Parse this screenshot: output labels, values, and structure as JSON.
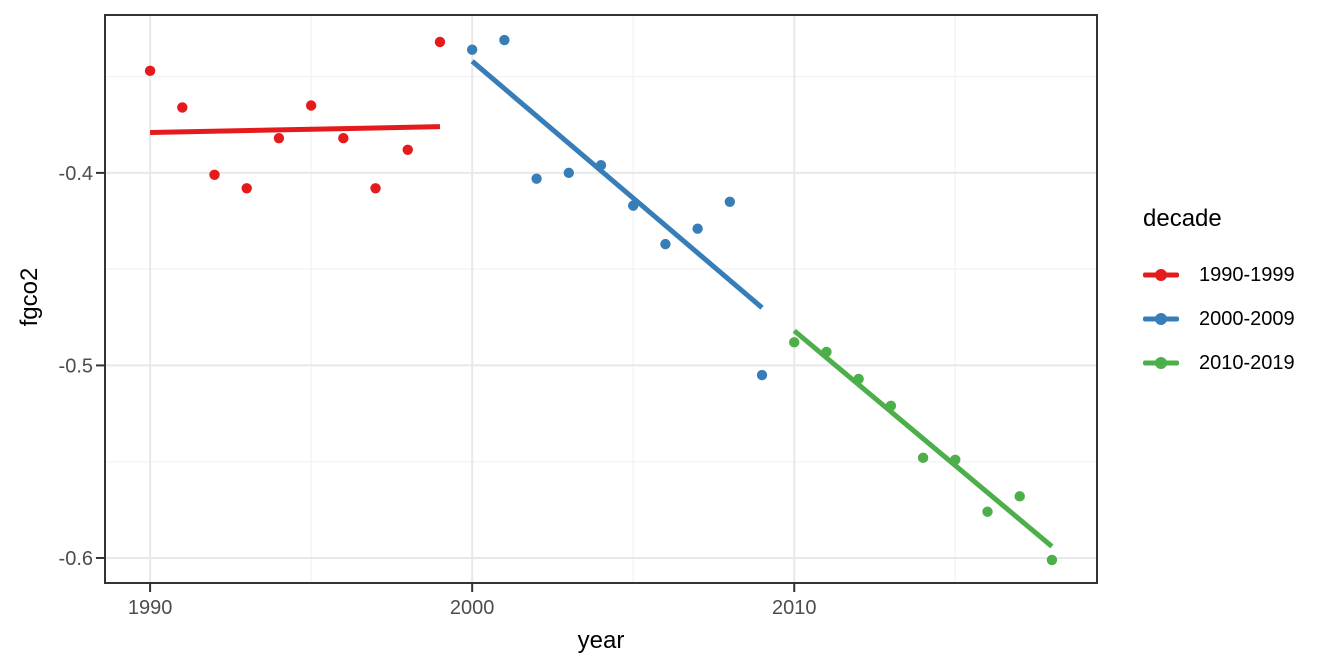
{
  "chart_data": {
    "type": "scatter",
    "title": "",
    "xlabel": "year",
    "ylabel": "fgco2",
    "xlim": [
      1988.6,
      2019.4
    ],
    "ylim": [
      -0.613,
      -0.318
    ],
    "x_ticks": [
      1990,
      2000,
      2010
    ],
    "x_tick_labels": [
      "1990",
      "2000",
      "2010"
    ],
    "x_minor_ticks": [
      1995,
      2005,
      2015
    ],
    "y_ticks": [
      -0.4,
      -0.5,
      -0.6
    ],
    "y_tick_labels": [
      "-0.4",
      "-0.5",
      "-0.6"
    ],
    "y_minor_ticks": [
      -0.35,
      -0.45,
      -0.55
    ],
    "grid": true,
    "legend_position": "right",
    "style": {
      "grid_major": "#E8E8E8",
      "grid_minor": "#F4F4F4",
      "panel_border": "#333333",
      "tick_color": "#333333",
      "tick_label_color": "#4D4D4D",
      "point_radius": 5.2,
      "line_width": 5
    },
    "series": [
      {
        "name": "1990-1999",
        "color": "#E41A1C",
        "x": [
          1990,
          1991,
          1992,
          1993,
          1994,
          1995,
          1996,
          1997,
          1998,
          1999
        ],
        "y": [
          -0.347,
          -0.366,
          -0.401,
          -0.408,
          -0.382,
          -0.365,
          -0.382,
          -0.408,
          -0.388,
          -0.332
        ],
        "trend": {
          "x": [
            1990,
            1999
          ],
          "y": [
            -0.379,
            -0.376
          ]
        }
      },
      {
        "name": "2000-2009",
        "color": "#377EB8",
        "x": [
          2000,
          2001,
          2002,
          2003,
          2004,
          2005,
          2006,
          2007,
          2008,
          2009
        ],
        "y": [
          -0.336,
          -0.331,
          -0.403,
          -0.4,
          -0.396,
          -0.417,
          -0.437,
          -0.429,
          -0.415,
          -0.505
        ],
        "trend": {
          "x": [
            2000,
            2009
          ],
          "y": [
            -0.342,
            -0.47
          ]
        }
      },
      {
        "name": "2010-2019",
        "color": "#4DAF4A",
        "x": [
          2010,
          2011,
          2012,
          2013,
          2014,
          2015,
          2016,
          2017,
          2018
        ],
        "y": [
          -0.488,
          -0.493,
          -0.507,
          -0.521,
          -0.548,
          -0.549,
          -0.576,
          -0.568,
          -0.601
        ],
        "trend": {
          "x": [
            2010,
            2018
          ],
          "y": [
            -0.482,
            -0.594
          ]
        }
      }
    ]
  },
  "legend": {
    "title": "decade",
    "entries": [
      "1990-1999",
      "2000-2009",
      "2010-2019"
    ]
  }
}
